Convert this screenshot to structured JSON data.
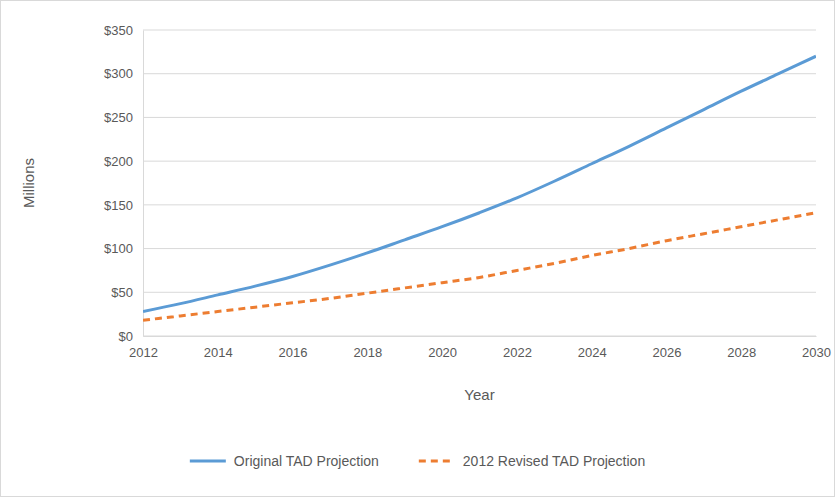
{
  "chart_data": {
    "type": "line",
    "x_label": "Year",
    "y_label": "Millions",
    "x": [
      2012,
      2013,
      2014,
      2015,
      2016,
      2017,
      2018,
      2019,
      2020,
      2021,
      2022,
      2023,
      2024,
      2025,
      2026,
      2027,
      2028,
      2029,
      2030
    ],
    "series": [
      {
        "name": "Original TAD Projection",
        "color": "#5b9bd5",
        "line_style": "solid",
        "values": [
          28,
          37,
          47,
          57,
          68,
          81,
          95,
          110,
          125,
          141,
          158,
          177,
          197,
          217,
          238,
          259,
          280,
          300,
          320
        ]
      },
      {
        "name": "2012 Revised TAD Projection",
        "color": "#ed7d31",
        "line_style": "dashed",
        "values": [
          18,
          23,
          28,
          33,
          38,
          43,
          49,
          55,
          61,
          67,
          75,
          83,
          92,
          100,
          109,
          117,
          125,
          133,
          141
        ]
      }
    ],
    "xlim": [
      2012,
      2030
    ],
    "xticks": [
      2012,
      2014,
      2016,
      2018,
      2020,
      2022,
      2024,
      2026,
      2028,
      2030
    ],
    "ylim": [
      0,
      350
    ],
    "yticks": [
      {
        "value": 0,
        "label": "$0"
      },
      {
        "value": 50,
        "label": "$50"
      },
      {
        "value": 100,
        "label": "$100"
      },
      {
        "value": 150,
        "label": "$150"
      },
      {
        "value": 200,
        "label": "$200"
      },
      {
        "value": 250,
        "label": "$250"
      },
      {
        "value": 300,
        "label": "$300"
      },
      {
        "value": 350,
        "label": "$350"
      }
    ],
    "grid": true,
    "legend": "bottom"
  }
}
